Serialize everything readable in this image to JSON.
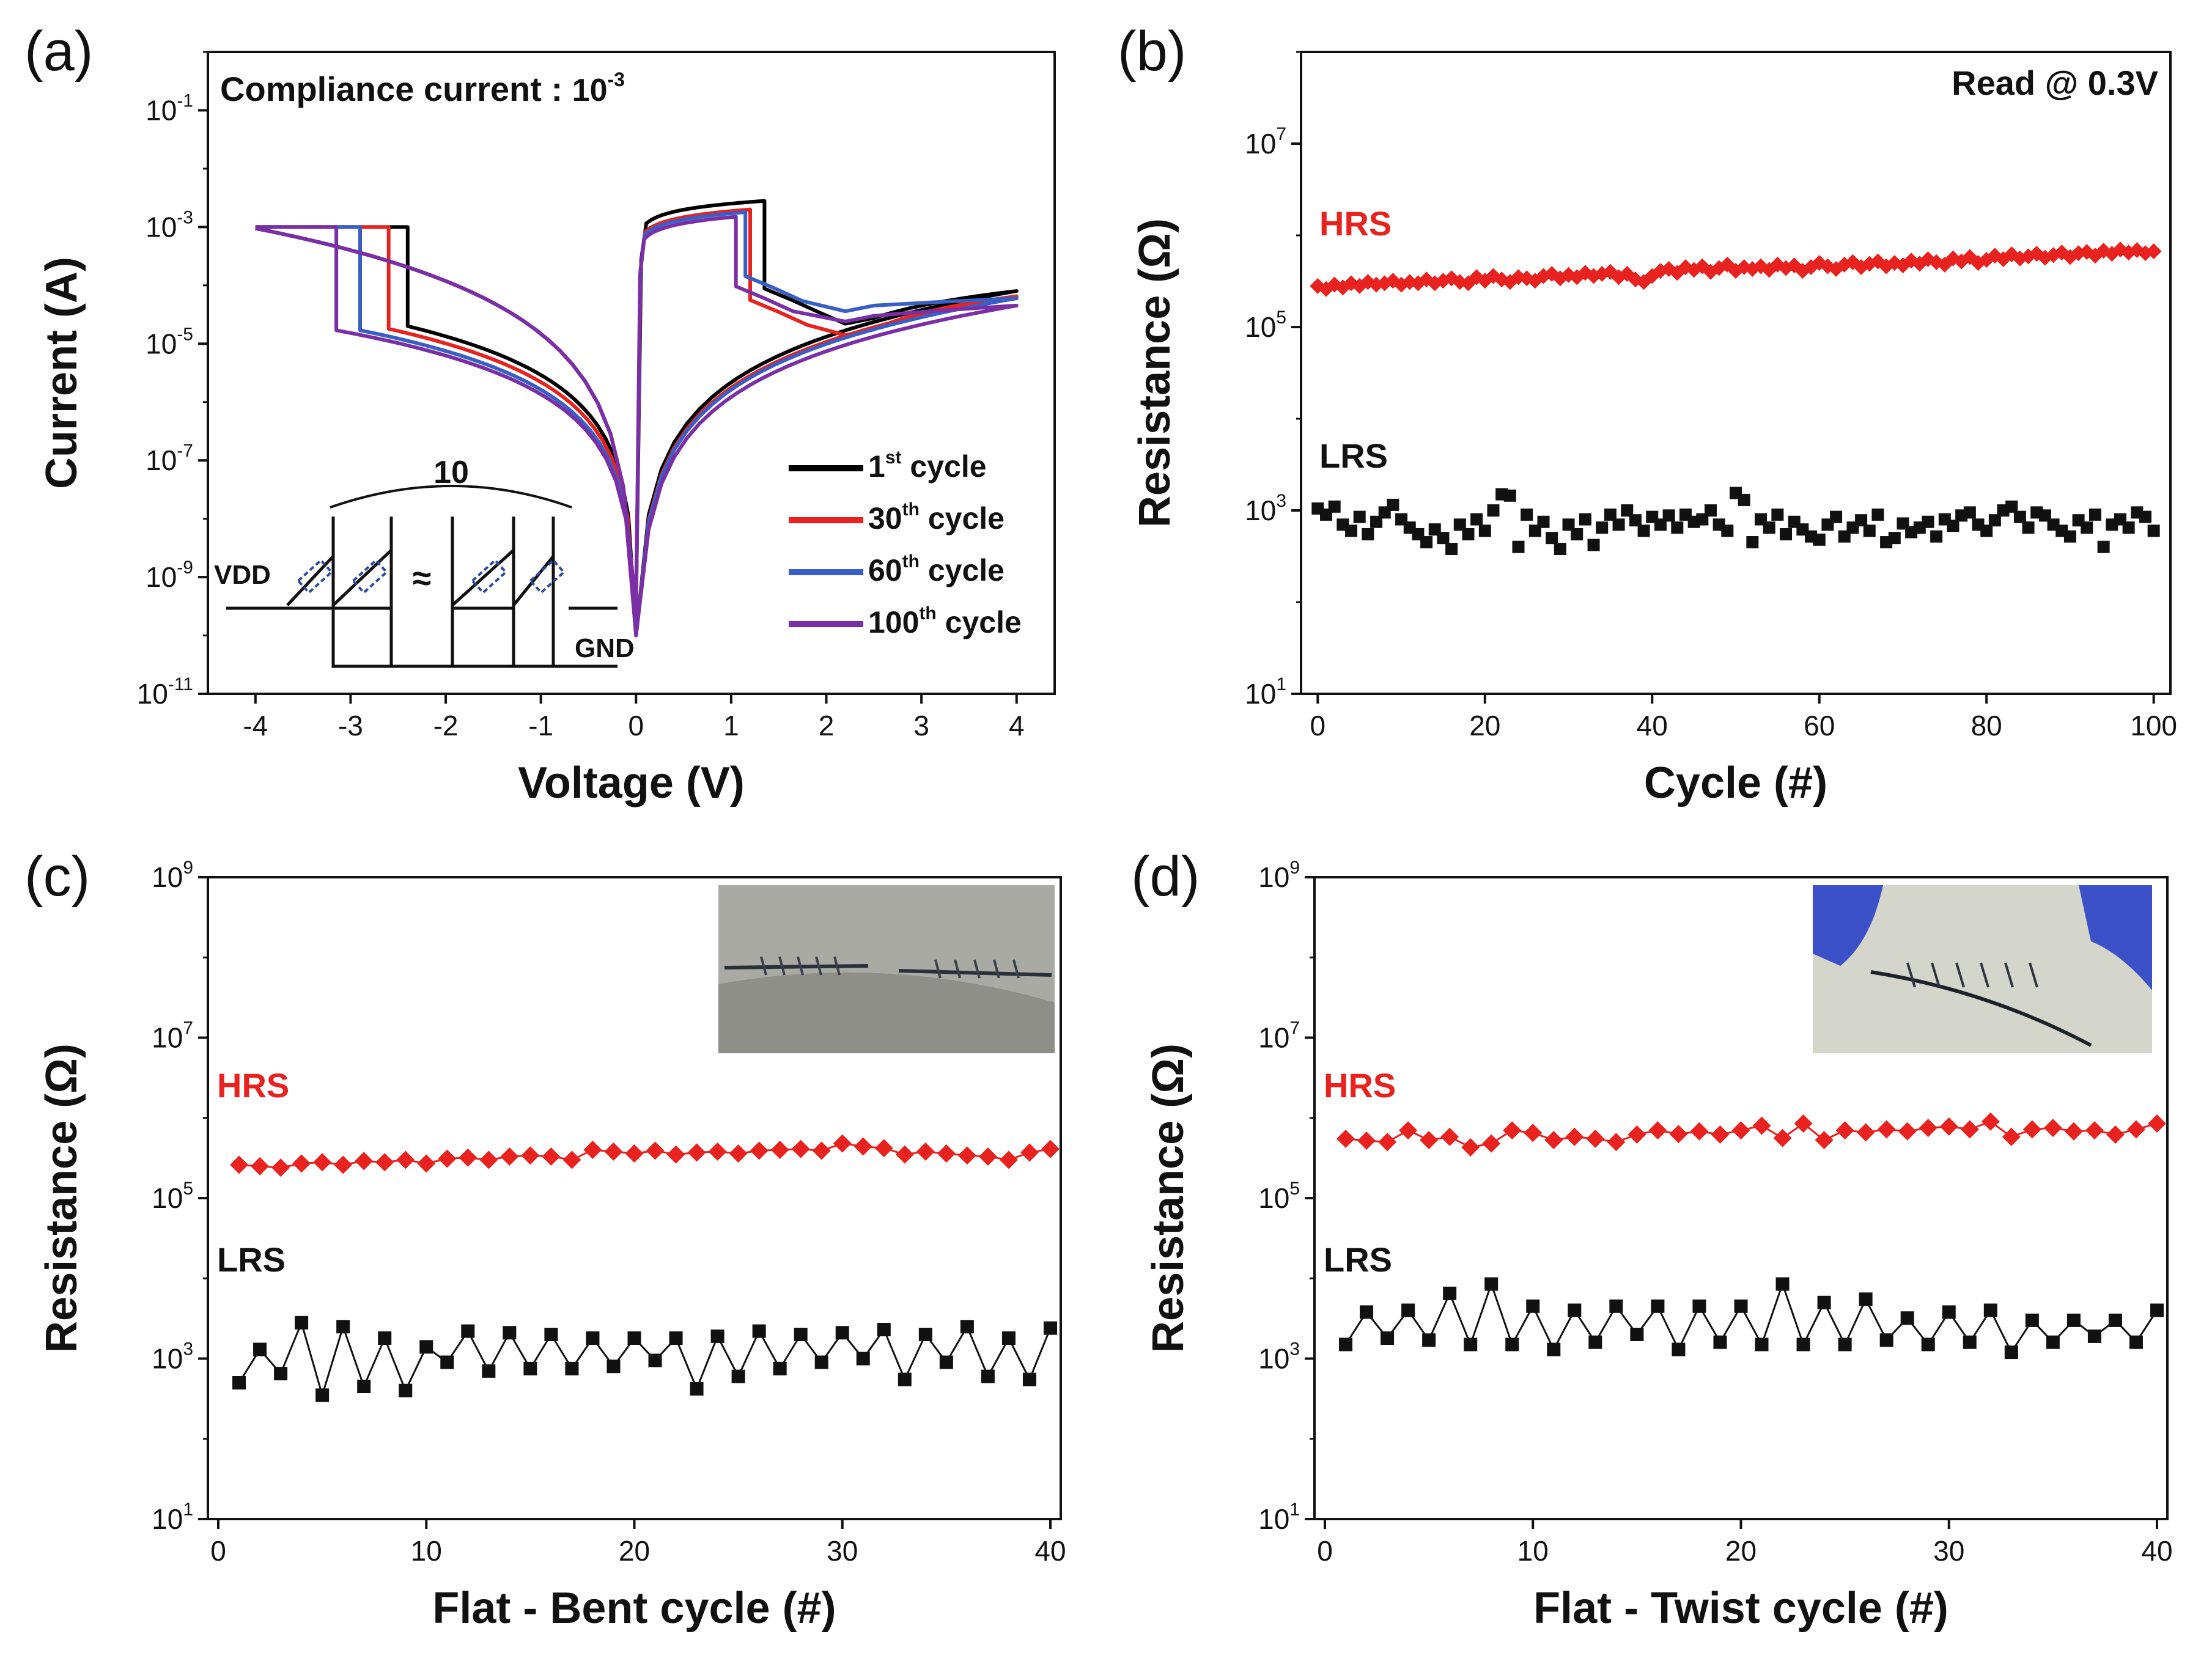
{
  "colors": {
    "cycle1": "#000000",
    "cycle30": "#e8231f",
    "cycle60": "#3a5fc4",
    "cycle100": "#7b2fa6",
    "hrs": "#e8231f",
    "lrs": "#111111"
  },
  "chart_data": [
    {
      "id": "a",
      "type": "line",
      "panel_label": "(a)",
      "xlabel": "Voltage (V)",
      "ylabel": "Current (A)",
      "y_scale": "log",
      "xlim": [
        -4.5,
        4.4
      ],
      "ylim_exp": [
        -11,
        0
      ],
      "x_ticks": [
        "-4",
        "-3",
        "-2",
        "-1",
        "0",
        "1",
        "2",
        "3",
        "4"
      ],
      "y_ticks": [
        {
          "base": "10",
          "exp": "-1"
        },
        {
          "base": "10",
          "exp": "-3"
        },
        {
          "base": "10",
          "exp": "-5"
        },
        {
          "base": "10",
          "exp": "-7"
        },
        {
          "base": "10",
          "exp": "-9"
        },
        {
          "base": "10",
          "exp": "-11"
        }
      ],
      "annotation": {
        "text": "Compliance current : ",
        "value_base": "10",
        "value_exp": "-3"
      },
      "legend": [
        {
          "num": "1",
          "sup": "st",
          "word": " cycle"
        },
        {
          "num": "30",
          "sup": "th",
          "word": " cycle"
        },
        {
          "num": "60",
          "sup": "th",
          "word": " cycle"
        },
        {
          "num": "100",
          "sup": "th",
          "word": " cycle"
        }
      ],
      "inset": {
        "count": "10",
        "vdd": "VDD",
        "gnd": "GND",
        "approx": "≈"
      },
      "series": [
        {
          "set_v": -2.4,
          "lrs_low": 2e-05,
          "peak_v": 1.35,
          "peak_i": 0.0028,
          "reset_plateau": 5.5e-05,
          "end_i": 8e-05
        },
        {
          "set_v": -2.6,
          "lrs_low": 1.8e-05,
          "peak_v": 1.2,
          "peak_i": 0.002,
          "reset_plateau": 3.5e-05,
          "end_i": 6.5e-05
        },
        {
          "set_v": -2.9,
          "lrs_low": 1.7e-05,
          "peak_v": 1.15,
          "peak_i": 0.0018,
          "reset_plateau": 9e-05,
          "end_i": 6e-05
        },
        {
          "set_v": -3.15,
          "lrs_low": 1.7e-05,
          "peak_v": 1.05,
          "peak_i": 0.0015,
          "reset_plateau": 6e-05,
          "end_i": 4.5e-05
        }
      ]
    },
    {
      "id": "b",
      "type": "scatter",
      "panel_label": "(b)",
      "xlabel": "Cycle (#)",
      "ylabel": "Resistance (Ω)",
      "y_scale": "log",
      "xlim": [
        -2,
        102
      ],
      "ylim_exp": [
        1,
        8
      ],
      "x_ticks": [
        "0",
        "20",
        "40",
        "60",
        "80",
        "100"
      ],
      "y_ticks": [
        {
          "base": "10",
          "exp": "7"
        },
        {
          "base": "10",
          "exp": "5"
        },
        {
          "base": "10",
          "exp": "3"
        },
        {
          "base": "10",
          "exp": "1"
        }
      ],
      "read_label": "Read @ 0.3V",
      "hrs_label": "HRS",
      "lrs_label": "LRS",
      "hrs": [
        280000.0,
        260000.0,
        290000.0,
        270000.0,
        300000.0,
        280000.0,
        310000.0,
        290000.0,
        300000.0,
        320000.0,
        290000.0,
        310000.0,
        300000.0,
        330000.0,
        300000.0,
        320000.0,
        340000.0,
        310000.0,
        300000.0,
        350000.0,
        320000.0,
        360000.0,
        330000.0,
        310000.0,
        350000.0,
        340000.0,
        320000.0,
        360000.0,
        380000.0,
        340000.0,
        370000.0,
        350000.0,
        390000.0,
        360000.0,
        380000.0,
        400000.0,
        350000.0,
        380000.0,
        330000.0,
        310000.0,
        360000.0,
        410000.0,
        430000.0,
        390000.0,
        450000.0,
        420000.0,
        460000.0,
        400000.0,
        440000.0,
        480000.0,
        410000.0,
        450000.0,
        430000.0,
        460000.0,
        420000.0,
        480000.0,
        440000.0,
        470000.0,
        410000.0,
        450000.0,
        500000.0,
        460000.0,
        430000.0,
        480000.0,
        510000.0,
        450000.0,
        490000.0,
        520000.0,
        460000.0,
        500000.0,
        470000.0,
        530000.0,
        490000.0,
        550000.0,
        510000.0,
        480000.0,
        560000.0,
        520000.0,
        580000.0,
        500000.0,
        540000.0,
        600000.0,
        550000.0,
        620000.0,
        560000.0,
        590000.0,
        630000.0,
        570000.0,
        610000.0,
        650000.0,
        580000.0,
        640000.0,
        660000.0,
        600000.0,
        680000.0,
        630000.0,
        700000.0,
        650000.0,
        690000.0,
        640000.0,
        670000.0
      ],
      "lrs": [
        1050,
        900,
        1100,
        700,
        600,
        850,
        550,
        750,
        950,
        1150,
        800,
        650,
        550,
        450,
        620,
        500,
        380,
        700,
        550,
        800,
        600,
        1000,
        1500,
        1450,
        400,
        900,
        600,
        750,
        500,
        380,
        700,
        550,
        800,
        420,
        650,
        900,
        700,
        1000,
        780,
        600,
        850,
        700,
        880,
        650,
        900,
        750,
        800,
        1000,
        700,
        600,
        1550,
        1300,
        450,
        800,
        650,
        900,
        550,
        750,
        620,
        520,
        480,
        700,
        850,
        520,
        650,
        780,
        600,
        900,
        450,
        500,
        720,
        580,
        650,
        750,
        520,
        800,
        680,
        880,
        950,
        700,
        600,
        780,
        1000,
        1100,
        850,
        650,
        950,
        880,
        700,
        600,
        520,
        780,
        650,
        900,
        400,
        700,
        800,
        650,
        950,
        850,
        600
      ]
    },
    {
      "id": "c",
      "type": "line",
      "panel_label": "(c)",
      "xlabel": "Flat - Bent cycle (#)",
      "ylabel": "Resistance (Ω)",
      "y_scale": "log",
      "xlim": [
        -0.5,
        40.5
      ],
      "ylim_exp": [
        1,
        9
      ],
      "x_ticks": [
        "0",
        "10",
        "20",
        "30",
        "40"
      ],
      "y_ticks": [
        {
          "base": "10",
          "exp": "9"
        },
        {
          "base": "10",
          "exp": "7"
        },
        {
          "base": "10",
          "exp": "5"
        },
        {
          "base": "10",
          "exp": "3"
        },
        {
          "base": "10",
          "exp": "1"
        }
      ],
      "hrs_label": "HRS",
      "lrs_label": "LRS",
      "x": [
        1,
        2,
        3,
        4,
        5,
        6,
        7,
        8,
        9,
        10,
        11,
        12,
        13,
        14,
        15,
        16,
        17,
        18,
        19,
        20,
        21,
        22,
        23,
        24,
        25,
        26,
        27,
        28,
        29,
        30,
        31,
        32,
        33,
        34,
        35,
        36,
        37,
        38,
        39,
        40
      ],
      "hrs": [
        260000.0,
        250000.0,
        240000.0,
        270000.0,
        280000.0,
        260000.0,
        290000.0,
        280000.0,
        300000.0,
        270000.0,
        310000.0,
        320000.0,
        300000.0,
        330000.0,
        340000.0,
        330000.0,
        300000.0,
        400000.0,
        380000.0,
        360000.0,
        390000.0,
        350000.0,
        370000.0,
        380000.0,
        360000.0,
        390000.0,
        400000.0,
        410000.0,
        390000.0,
        480000.0,
        440000.0,
        420000.0,
        350000.0,
        380000.0,
        360000.0,
        340000.0,
        330000.0,
        300000.0,
        370000.0,
        410000.0
      ],
      "lrs": [
        500,
        1300,
        650,
        2800,
        350,
        2500,
        450,
        1800,
        400,
        1400,
        900,
        2200,
        700,
        2100,
        750,
        2000,
        750,
        1800,
        800,
        1800,
        950,
        1800,
        420,
        1900,
        600,
        2200,
        750,
        2000,
        900,
        2100,
        1000,
        2300,
        550,
        2000,
        900,
        2500,
        600,
        1800,
        550,
        2400
      ]
    },
    {
      "id": "d",
      "type": "line",
      "panel_label": "(d)",
      "xlabel": "Flat - Twist cycle (#)",
      "ylabel": "Resistance (Ω)",
      "y_scale": "log",
      "xlim": [
        -0.5,
        40.5
      ],
      "ylim_exp": [
        1,
        9
      ],
      "x_ticks": [
        "0",
        "10",
        "20",
        "30",
        "40"
      ],
      "y_ticks": [
        {
          "base": "10",
          "exp": "9"
        },
        {
          "base": "10",
          "exp": "7"
        },
        {
          "base": "10",
          "exp": "5"
        },
        {
          "base": "10",
          "exp": "3"
        },
        {
          "base": "10",
          "exp": "1"
        }
      ],
      "hrs_label": "HRS",
      "lrs_label": "LRS",
      "x": [
        1,
        2,
        3,
        4,
        5,
        6,
        7,
        8,
        9,
        10,
        11,
        12,
        13,
        14,
        15,
        16,
        17,
        18,
        19,
        20,
        21,
        22,
        23,
        24,
        25,
        26,
        27,
        28,
        29,
        30,
        31,
        32,
        33,
        34,
        35,
        36,
        37,
        38,
        39,
        40
      ],
      "hrs": [
        550000.0,
        520000.0,
        500000.0,
        700000.0,
        530000.0,
        580000.0,
        430000.0,
        480000.0,
        700000.0,
        650000.0,
        530000.0,
        580000.0,
        550000.0,
        500000.0,
        620000.0,
        700000.0,
        630000.0,
        680000.0,
        620000.0,
        700000.0,
        800000.0,
        560000.0,
        850000.0,
        530000.0,
        700000.0,
        660000.0,
        720000.0,
        680000.0,
        750000.0,
        780000.0,
        720000.0,
        900000.0,
        580000.0,
        720000.0,
        750000.0,
        680000.0,
        700000.0,
        620000.0,
        720000.0,
        850000.0
      ],
      "lrs": [
        1500,
        3800,
        1800,
        4000,
        1700,
        6500,
        1500,
        8500,
        1500,
        4500,
        1300,
        4000,
        1600,
        4500,
        2000,
        4500,
        1300,
        4500,
        1600,
        4500,
        1500,
        8500,
        1500,
        5000,
        1500,
        5500,
        1700,
        3200,
        1500,
        3800,
        1600,
        4000,
        1200,
        3000,
        1600,
        3000,
        1900,
        3000,
        1600,
        4000
      ]
    }
  ]
}
